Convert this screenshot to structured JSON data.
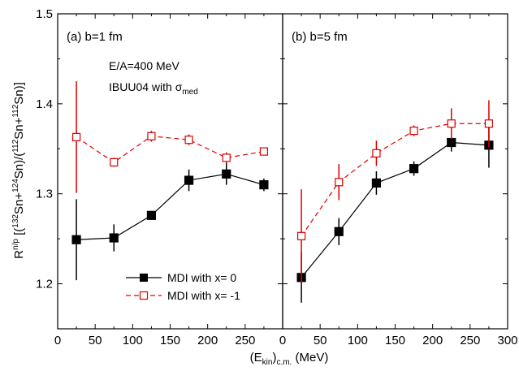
{
  "chart_data": {
    "type": "line",
    "xlabel": "(E",
    "xlabel_sub": "kin",
    "xlabel_sub2": ")",
    "xlabel_sub3": "c.m.",
    "xlabel_units": " (MeV)",
    "ylabel": {
      "base": "R",
      "sup": "n/p",
      "part1": " [(",
      "sup132": "132",
      "part2": "Sn+",
      "sup124": "124",
      "part3": "Sn)/(",
      "sup112a": "112",
      "part4": "Sn+",
      "sup112b": "112",
      "part5": "Sn)]"
    },
    "ylim": [
      1.15,
      1.5
    ],
    "yticks": [
      "1.2",
      "1.3",
      "1.4",
      "1.5"
    ],
    "annotation": {
      "line1": "E/A=400 MeV",
      "line2_prefix": "IBUU04 with ",
      "line2_sigma": "σ",
      "line2_sub": "med"
    },
    "legend": [
      {
        "label": "MDI with x= 0",
        "marker": "filled-square",
        "line": "solid",
        "color": "#000000"
      },
      {
        "label": "MDI with x= -1",
        "marker": "open-square",
        "line": "dashed",
        "color": "#dd0000"
      }
    ],
    "panels": [
      {
        "label": "(a) b=1 fm",
        "xlim": [
          0,
          300
        ],
        "xticks": [
          "0",
          "50",
          "100",
          "150",
          "200",
          "250"
        ],
        "series": [
          {
            "name": "MDI with x= 0",
            "x": [
              25,
              75,
              125,
              175,
              225,
              275
            ],
            "y": [
              1.249,
              1.251,
              1.276,
              1.315,
              1.322,
              1.31
            ],
            "err": [
              0.045,
              0.015,
              0.005,
              0.012,
              0.012,
              0.007
            ]
          },
          {
            "name": "MDI with x= -1",
            "x": [
              25,
              75,
              125,
              175,
              225,
              275
            ],
            "y": [
              1.363,
              1.335,
              1.364,
              1.36,
              1.34,
              1.347
            ],
            "err": [
              0.062,
              0.005,
              0.006,
              0.006,
              0.006,
              0.004
            ]
          }
        ]
      },
      {
        "label": "(b) b=5 fm",
        "xlim": [
          0,
          300
        ],
        "xticks": [
          "0",
          "50",
          "100",
          "150",
          "200",
          "250",
          "300"
        ],
        "series": [
          {
            "name": "MDI with x= 0",
            "x": [
              25,
              75,
              125,
              175,
              225,
              275
            ],
            "y": [
              1.207,
              1.258,
              1.312,
              1.328,
              1.357,
              1.354
            ],
            "err": [
              0.028,
              0.015,
              0.013,
              0.008,
              0.01,
              0.025
            ]
          },
          {
            "name": "MDI with x= -1",
            "x": [
              25,
              75,
              125,
              175,
              225,
              275
            ],
            "y": [
              1.253,
              1.313,
              1.345,
              1.37,
              1.378,
              1.378
            ],
            "err": [
              0.052,
              0.02,
              0.014,
              0.006,
              0.017,
              0.026
            ]
          }
        ]
      }
    ]
  }
}
